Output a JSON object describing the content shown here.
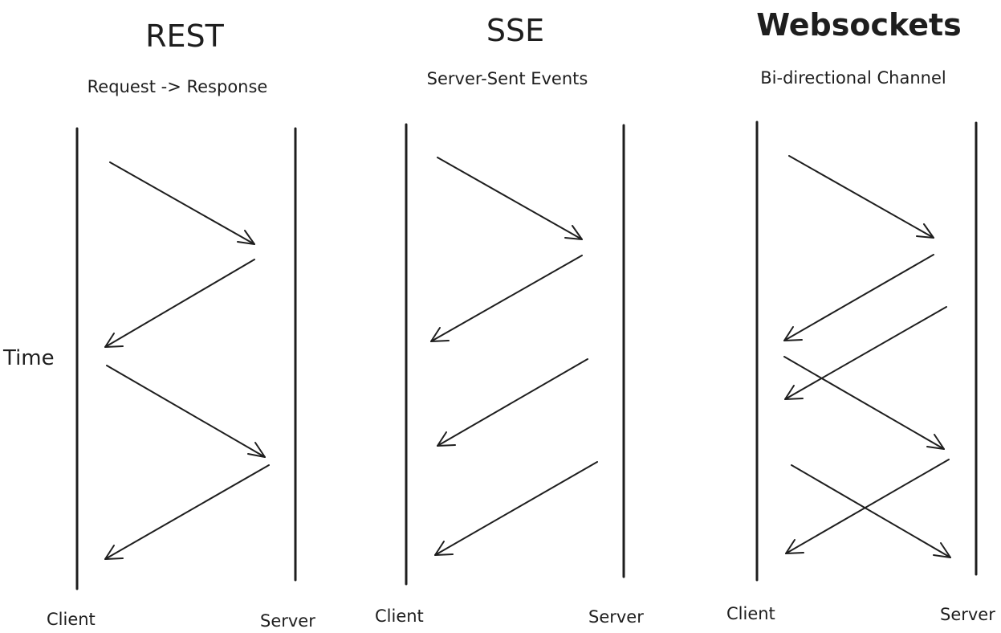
{
  "time_label": "Time",
  "panels": [
    {
      "title": "REST",
      "subtitle": "Request -> Response",
      "client_label": "Client",
      "server_label": "Server"
    },
    {
      "title": "SSE",
      "subtitle": "Server-Sent Events",
      "client_label": "Client",
      "server_label": "Server"
    },
    {
      "title": "Websockets",
      "subtitle": "Bi-directional Channel",
      "client_label": "Client",
      "server_label": "Server"
    }
  ]
}
